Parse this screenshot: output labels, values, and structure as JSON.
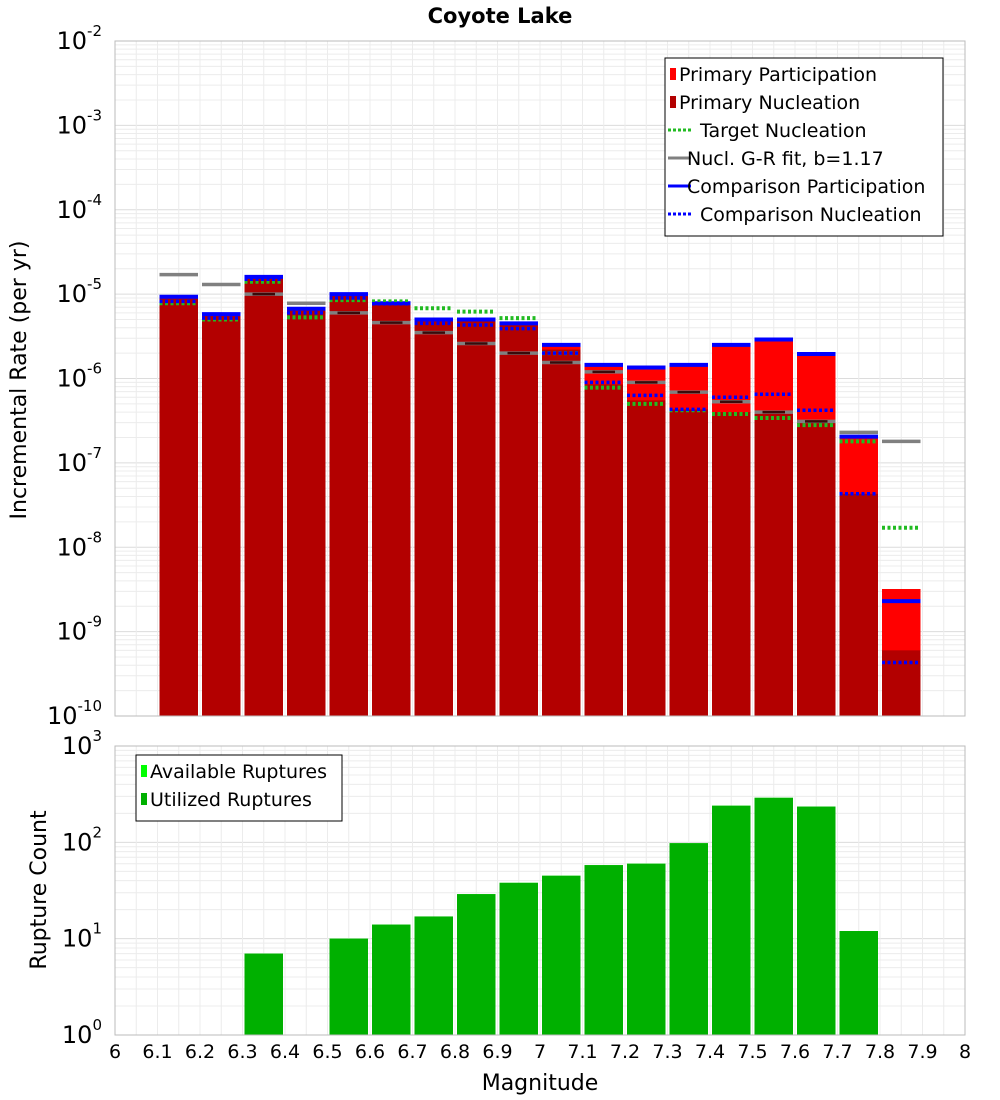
{
  "chart_data": [
    {
      "type": "bar",
      "title": "Coyote Lake",
      "xlabel": "",
      "ylabel": "Incremental Rate (per yr)",
      "yscale": "log",
      "ylim": [
        1e-10,
        0.01
      ],
      "xlim": [
        6.0,
        8.0
      ],
      "grid": true,
      "legend_position": "top-right",
      "y_ticks": [
        {
          "base": "10",
          "exp": "-10"
        },
        {
          "base": "10",
          "exp": "-9"
        },
        {
          "base": "10",
          "exp": "-8"
        },
        {
          "base": "10",
          "exp": "-7"
        },
        {
          "base": "10",
          "exp": "-6"
        },
        {
          "base": "10",
          "exp": "-5"
        },
        {
          "base": "10",
          "exp": "-4"
        },
        {
          "base": "10",
          "exp": "-3"
        },
        {
          "base": "10",
          "exp": "-2"
        }
      ],
      "bin_centers": [
        6.15,
        6.25,
        6.35,
        6.45,
        6.55,
        6.65,
        6.75,
        6.85,
        6.95,
        7.05,
        7.15,
        7.25,
        7.35,
        7.45,
        7.55,
        7.65,
        7.75,
        7.85
      ],
      "bin_width": 0.1,
      "legend": [
        {
          "label": "Primary Participation",
          "style": "box",
          "color": "#ff0000"
        },
        {
          "label": "Primary Nucleation",
          "style": "box",
          "color": "#b30000"
        },
        {
          "label": "Target Nucleation",
          "style": "dotted",
          "color": "#22bb22"
        },
        {
          "label": "Nucl. G-R fit, b=1.17",
          "style": "solid",
          "color": "#808080"
        },
        {
          "label": "Comparison Participation",
          "style": "solid",
          "color": "#0000ff"
        },
        {
          "label": "Comparison Nucleation",
          "style": "dotted",
          "color": "#0000ff"
        }
      ],
      "series": [
        {
          "name": "Primary Participation",
          "color": "#ff0000",
          "values": [
            9e-06,
            5.5e-06,
            1.55e-05,
            6.5e-06,
            9.5e-06,
            7.5e-06,
            4.8e-06,
            4.8e-06,
            4.3e-06,
            2.4e-06,
            1.4e-06,
            1.3e-06,
            1.4e-06,
            2.4e-06,
            2.8e-06,
            1.9e-06,
            2e-07,
            3.2e-09
          ]
        },
        {
          "name": "Primary Nucleation",
          "color": "#b30000",
          "values": [
            9e-06,
            5.5e-06,
            1.55e-05,
            6.5e-06,
            9.5e-06,
            7.5e-06,
            4.8e-06,
            4.8e-06,
            4.3e-06,
            2.2e-06,
            8.5e-07,
            5.5e-07,
            4.3e-07,
            4e-07,
            3.8e-07,
            3.2e-07,
            4.3e-08,
            6e-10
          ]
        },
        {
          "name": "Target Nucleation",
          "color": "#22bb22",
          "values": [
            7.8e-06,
            5e-06,
            1.4e-05,
            5.3e-06,
            8.5e-06,
            8.2e-06,
            6.8e-06,
            6.2e-06,
            5.2e-06,
            2e-06,
            7.8e-07,
            5e-07,
            4.2e-07,
            3.8e-07,
            3.4e-07,
            2.8e-07,
            1.8e-07,
            1.7e-08
          ]
        },
        {
          "name": "Nucl. G-R fit, b=1.17",
          "color": "#808080",
          "values": [
            1.7e-05,
            1.3e-05,
            1e-05,
            7.8e-06,
            6e-06,
            4.6e-06,
            3.5e-06,
            2.6e-06,
            2e-06,
            1.55e-06,
            1.2e-06,
            9e-07,
            6.9e-07,
            5.3e-07,
            4e-07,
            3.1e-07,
            2.3e-07,
            1.8e-07
          ]
        },
        {
          "name": "Comparison Participation",
          "color": "#0000ff",
          "values": [
            9.3e-06,
            5.8e-06,
            1.6e-05,
            6.7e-06,
            1e-05,
            7.8e-06,
            5e-06,
            5e-06,
            4.5e-06,
            2.5e-06,
            1.45e-06,
            1.35e-06,
            1.45e-06,
            2.5e-06,
            2.9e-06,
            1.95e-06,
            2.05e-07,
            2.3e-09
          ]
        },
        {
          "name": "Comparison Nucleation",
          "color": "#0000ff",
          "values": [
            8.2e-06,
            5.2e-06,
            1.5e-05,
            6e-06,
            9e-06,
            7.7e-06,
            4.5e-06,
            4.3e-06,
            3.9e-06,
            2e-06,
            9e-07,
            6.3e-07,
            4.3e-07,
            6e-07,
            6.5e-07,
            4.2e-07,
            4.3e-08,
            4.3e-10
          ]
        }
      ]
    },
    {
      "type": "bar",
      "title": "",
      "xlabel": "Magnitude",
      "ylabel": "Rupture Count",
      "yscale": "log",
      "ylim": [
        1,
        1000
      ],
      "xlim": [
        6.0,
        8.0
      ],
      "grid": true,
      "legend_position": "top-left",
      "y_ticks": [
        {
          "base": "10",
          "exp": "0"
        },
        {
          "base": "10",
          "exp": "1"
        },
        {
          "base": "10",
          "exp": "2"
        },
        {
          "base": "10",
          "exp": "3"
        }
      ],
      "x_ticks": [
        "6",
        "6.1",
        "6.2",
        "6.3",
        "6.4",
        "6.5",
        "6.6",
        "6.7",
        "6.8",
        "6.9",
        "7",
        "7.1",
        "7.2",
        "7.3",
        "7.4",
        "7.5",
        "7.6",
        "7.7",
        "7.8",
        "7.9",
        "8"
      ],
      "bin_centers": [
        6.15,
        6.25,
        6.35,
        6.45,
        6.55,
        6.65,
        6.75,
        6.85,
        6.95,
        7.05,
        7.15,
        7.25,
        7.35,
        7.45,
        7.55,
        7.65,
        7.75,
        7.85
      ],
      "bin_width": 0.1,
      "legend": [
        {
          "label": "Available Ruptures",
          "style": "box",
          "color": "#00ff00"
        },
        {
          "label": "Utilized Ruptures",
          "style": "box",
          "color": "#00b000"
        }
      ],
      "series": [
        {
          "name": "Available Ruptures",
          "color": "#00ff00",
          "values": [
            0,
            0,
            7,
            0,
            10,
            14,
            17,
            29,
            38,
            45,
            58,
            60,
            98,
            240,
            290,
            235,
            12,
            0
          ]
        },
        {
          "name": "Utilized Ruptures",
          "color": "#00b000",
          "values": [
            0,
            0,
            7,
            0,
            10,
            14,
            17,
            29,
            38,
            45,
            58,
            60,
            98,
            240,
            290,
            235,
            12,
            0
          ]
        }
      ]
    }
  ]
}
